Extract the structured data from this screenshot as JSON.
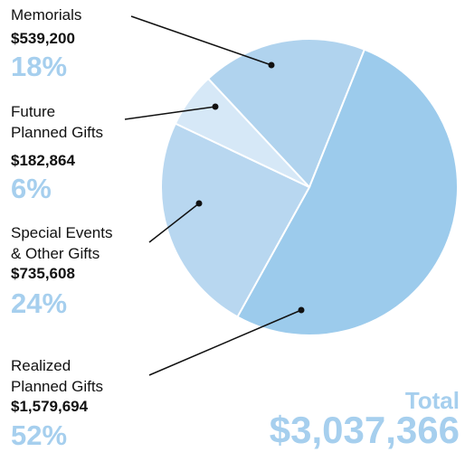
{
  "chart_data": {
    "type": "pie",
    "categories": [
      "Memorials",
      "Future\nPlanned Gifts",
      "Special Events\n& Other Gifts",
      "Realized\nPlanned Gifts"
    ],
    "values": [
      18,
      6,
      24,
      52
    ],
    "value_labels": [
      "18%",
      "6%",
      "24%",
      "52%"
    ],
    "amount_labels": [
      "$539,200",
      "$182,864",
      "$735,608",
      "$1,579,694"
    ],
    "colors": [
      "#b0d3ee",
      "#d6e8f7",
      "#b8d7f0",
      "#9ccbec"
    ],
    "total_label": "Total",
    "total": "$3,037,366"
  }
}
